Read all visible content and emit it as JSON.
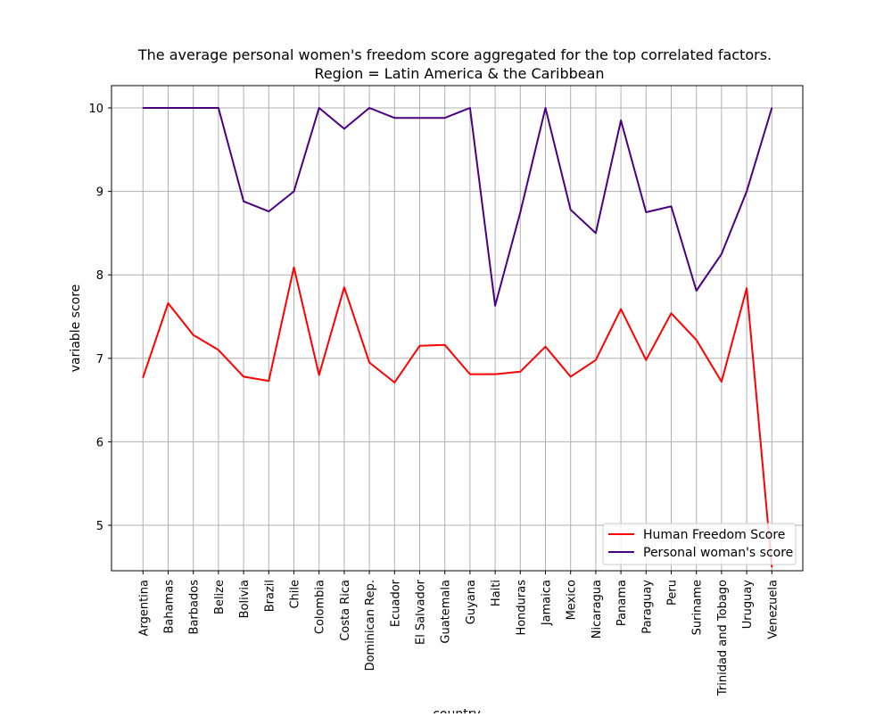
{
  "chart_data": {
    "type": "line",
    "title": "The average personal women's freedom score aggregated for the top correlated factors.",
    "subtitle": "Region = Latin America & the Caribbean",
    "xlabel": "country",
    "ylabel": "variable score",
    "categories": [
      "Argentina",
      "Bahamas",
      "Barbados",
      "Belize",
      "Bolivia",
      "Brazil",
      "Chile",
      "Colombia",
      "Costa Rica",
      "Dominican Rep.",
      "Ecuador",
      "El Salvador",
      "Guatemala",
      "Guyana",
      "Haiti",
      "Honduras",
      "Jamaica",
      "Mexico",
      "Nicaragua",
      "Panama",
      "Paraguay",
      "Peru",
      "Suriname",
      "Trinidad and Tobago",
      "Uruguay",
      "Venezuela"
    ],
    "y_ticks": [
      "5",
      "6",
      "7",
      "8",
      "9",
      "10"
    ],
    "ylim": [
      4.45,
      10.27
    ],
    "grid": true,
    "legend_position": "lower right",
    "series": [
      {
        "name": "Human Freedom Score",
        "color": "#ff0000",
        "values": [
          6.77,
          7.66,
          7.28,
          7.1,
          6.78,
          6.73,
          8.09,
          6.8,
          7.85,
          6.95,
          6.71,
          7.15,
          7.16,
          6.81,
          6.81,
          6.84,
          7.14,
          6.78,
          6.98,
          7.59,
          6.98,
          7.54,
          7.22,
          6.72,
          7.84,
          4.5
        ]
      },
      {
        "name": "Personal woman's score",
        "color": "#4b0082",
        "values": [
          10.0,
          10.0,
          10.0,
          10.0,
          8.88,
          8.76,
          9.0,
          10.0,
          9.75,
          10.0,
          9.88,
          9.88,
          9.88,
          10.0,
          7.63,
          8.75,
          10.0,
          8.78,
          8.5,
          9.85,
          8.75,
          8.82,
          7.81,
          8.25,
          9.0,
          10.0
        ]
      }
    ]
  }
}
